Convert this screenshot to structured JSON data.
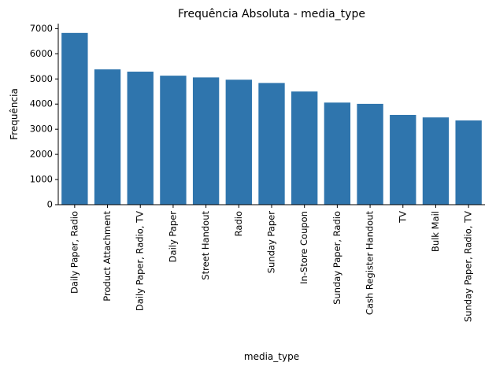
{
  "chart_data": {
    "type": "bar",
    "title": "Frequência Absoluta - media_type",
    "xlabel": "media_type",
    "ylabel": "Frequência",
    "categories": [
      "Daily Paper, Radio",
      "Product Attachment",
      "Daily Paper, Radio, TV",
      "Daily Paper",
      "Street Handout",
      "Radio",
      "Sunday Paper",
      "In-Store Coupon",
      "Sunday Paper, Radio",
      "Cash Register Handout",
      "TV",
      "Bulk Mail",
      "Sunday Paper, Radio, TV"
    ],
    "values": [
      6830,
      5380,
      5290,
      5130,
      5060,
      4970,
      4840,
      4500,
      4060,
      4010,
      3570,
      3470,
      3350
    ],
    "ylim": [
      0,
      7200
    ],
    "yticks": [
      0,
      1000,
      2000,
      3000,
      4000,
      5000,
      6000,
      7000
    ],
    "bar_color": "#2f75ad",
    "grid": false,
    "legend": "none"
  }
}
